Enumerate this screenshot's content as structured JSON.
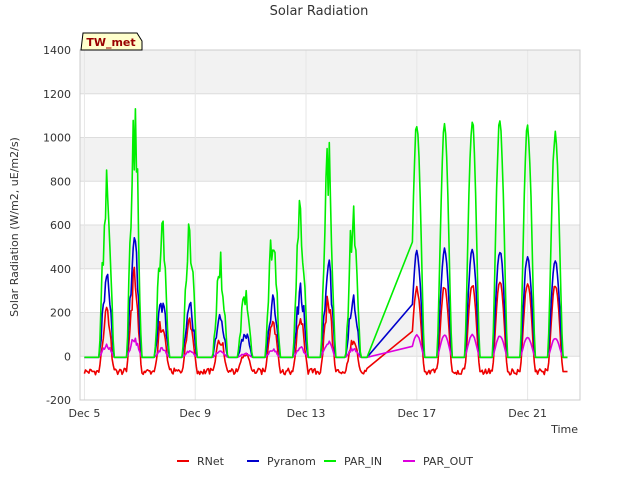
{
  "chart_data": {
    "type": "line",
    "title": "Solar Radiation",
    "xlabel": "Time",
    "ylabel": "Solar Radiation (W/m2, uE/m2/s)",
    "station_tag": "TW_met",
    "ylim": [
      -200,
      1400
    ],
    "yticks": [
      -200,
      0,
      200,
      400,
      600,
      800,
      1000,
      1200,
      1400
    ],
    "xlim": [
      0,
      18
    ],
    "x_unit": "days since Dec 5",
    "xticks": [
      {
        "x": 0,
        "label": "Dec 5"
      },
      {
        "x": 4,
        "label": "Dec 9"
      },
      {
        "x": 8,
        "label": "Dec 13"
      },
      {
        "x": 12,
        "label": "Dec 17"
      },
      {
        "x": 16,
        "label": "Dec 21"
      }
    ],
    "grid": true,
    "legend_placement": "bottom-center",
    "gap": [
      10.2,
      11.8
    ],
    "series": [
      {
        "name": "RNet",
        "color": "#ee0000",
        "night_value": -70,
        "daily_peaks": [
          {
            "day": 0.8,
            "peak": 240
          },
          {
            "day": 1.8,
            "peak": 420
          },
          {
            "day": 2.8,
            "peak": 200
          },
          {
            "day": 3.8,
            "peak": 180
          },
          {
            "day": 4.9,
            "peak": 100
          },
          {
            "day": 5.8,
            "peak": 40
          },
          {
            "day": 6.8,
            "peak": 200
          },
          {
            "day": 7.8,
            "peak": 230
          },
          {
            "day": 8.8,
            "peak": 300
          },
          {
            "day": 9.7,
            "peak": 120
          },
          {
            "day": 12.0,
            "peak": 320
          },
          {
            "day": 13.0,
            "peak": 330
          },
          {
            "day": 14.0,
            "peak": 340
          },
          {
            "day": 15.0,
            "peak": 360
          },
          {
            "day": 16.0,
            "peak": 350
          },
          {
            "day": 17.0,
            "peak": 340
          }
        ]
      },
      {
        "name": "Pyranom",
        "color": "#0000cc",
        "night_value": -5,
        "daily_peaks": [
          {
            "day": 0.8,
            "peak": 410
          },
          {
            "day": 1.8,
            "peak": 560
          },
          {
            "day": 2.8,
            "peak": 290
          },
          {
            "day": 3.8,
            "peak": 260
          },
          {
            "day": 4.9,
            "peak": 215
          },
          {
            "day": 5.8,
            "peak": 125
          },
          {
            "day": 6.8,
            "peak": 280
          },
          {
            "day": 7.8,
            "peak": 340
          },
          {
            "day": 8.8,
            "peak": 460
          },
          {
            "day": 9.7,
            "peak": 310
          },
          {
            "day": 12.0,
            "peak": 490
          },
          {
            "day": 13.0,
            "peak": 500
          },
          {
            "day": 14.0,
            "peak": 505
          },
          {
            "day": 15.0,
            "peak": 500
          },
          {
            "day": 16.0,
            "peak": 470
          },
          {
            "day": 17.0,
            "peak": 455
          }
        ]
      },
      {
        "name": "PAR_IN",
        "color": "#00ee00",
        "night_value": -5,
        "daily_peaks": [
          {
            "day": 0.8,
            "peak": 930
          },
          {
            "day": 1.8,
            "peak": 1255
          },
          {
            "day": 2.8,
            "peak": 670
          },
          {
            "day": 3.8,
            "peak": 630
          },
          {
            "day": 4.9,
            "peak": 500
          },
          {
            "day": 5.8,
            "peak": 335
          },
          {
            "day": 6.8,
            "peak": 635
          },
          {
            "day": 7.8,
            "peak": 760
          },
          {
            "day": 8.8,
            "peak": 1055
          },
          {
            "day": 9.7,
            "peak": 740
          },
          {
            "day": 12.0,
            "peak": 1085
          },
          {
            "day": 13.0,
            "peak": 1080
          },
          {
            "day": 14.0,
            "peak": 1100
          },
          {
            "day": 15.0,
            "peak": 1110
          },
          {
            "day": 16.0,
            "peak": 1080
          },
          {
            "day": 17.0,
            "peak": 1045
          }
        ]
      },
      {
        "name": "PAR_OUT",
        "color": "#dd00dd",
        "night_value": -5,
        "daily_peaks": [
          {
            "day": 0.8,
            "peak": 60
          },
          {
            "day": 1.8,
            "peak": 90
          },
          {
            "day": 2.8,
            "peak": 40
          },
          {
            "day": 3.8,
            "peak": 30
          },
          {
            "day": 4.9,
            "peak": 30
          },
          {
            "day": 5.8,
            "peak": 15
          },
          {
            "day": 6.8,
            "peak": 35
          },
          {
            "day": 7.8,
            "peak": 45
          },
          {
            "day": 8.8,
            "peak": 80
          },
          {
            "day": 9.7,
            "peak": 40
          },
          {
            "day": 12.0,
            "peak": 100
          },
          {
            "day": 13.0,
            "peak": 100
          },
          {
            "day": 14.0,
            "peak": 100
          },
          {
            "day": 15.0,
            "peak": 95
          },
          {
            "day": 16.0,
            "peak": 90
          },
          {
            "day": 17.0,
            "peak": 85
          }
        ]
      }
    ]
  }
}
